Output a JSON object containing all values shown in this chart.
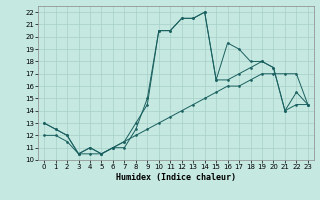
{
  "title": "",
  "xlabel": "Humidex (Indice chaleur)",
  "background_color": "#c5e8e0",
  "grid_color": "#a8d0c8",
  "line_color": "#1a6060",
  "xlim": [
    -0.5,
    23.5
  ],
  "ylim": [
    10,
    22.5
  ],
  "yticks": [
    10,
    11,
    12,
    13,
    14,
    15,
    16,
    17,
    18,
    19,
    20,
    21,
    22
  ],
  "xticks": [
    0,
    1,
    2,
    3,
    4,
    5,
    6,
    7,
    8,
    9,
    10,
    11,
    12,
    13,
    14,
    15,
    16,
    17,
    18,
    19,
    20,
    21,
    22,
    23
  ],
  "hours": [
    0,
    1,
    2,
    3,
    4,
    5,
    6,
    7,
    8,
    9,
    10,
    11,
    12,
    13,
    14,
    15,
    16,
    17,
    18,
    19,
    20,
    21,
    22,
    23
  ],
  "y_top": [
    13,
    12.5,
    12,
    10.5,
    11,
    10.5,
    11,
    11,
    12.5,
    15,
    20.5,
    20.5,
    21.5,
    21.5,
    22,
    16.5,
    19.5,
    19,
    18,
    18,
    17.5,
    14,
    15.5,
    14.5
  ],
  "y_mid": [
    13,
    12.5,
    12,
    10.5,
    11,
    10.5,
    11,
    11.5,
    13,
    14.5,
    20.5,
    20.5,
    21.5,
    21.5,
    22,
    16.5,
    16.5,
    17,
    17.5,
    18,
    17.5,
    14,
    14.5,
    14.5
  ],
  "y_bot": [
    12,
    12,
    11.5,
    10.5,
    10.5,
    10.5,
    11,
    11.5,
    12,
    12.5,
    13,
    13.5,
    14,
    14.5,
    15,
    15.5,
    16,
    16,
    16.5,
    17,
    17,
    17,
    17,
    14.5
  ],
  "tick_fontsize": 5,
  "xlabel_fontsize": 6
}
